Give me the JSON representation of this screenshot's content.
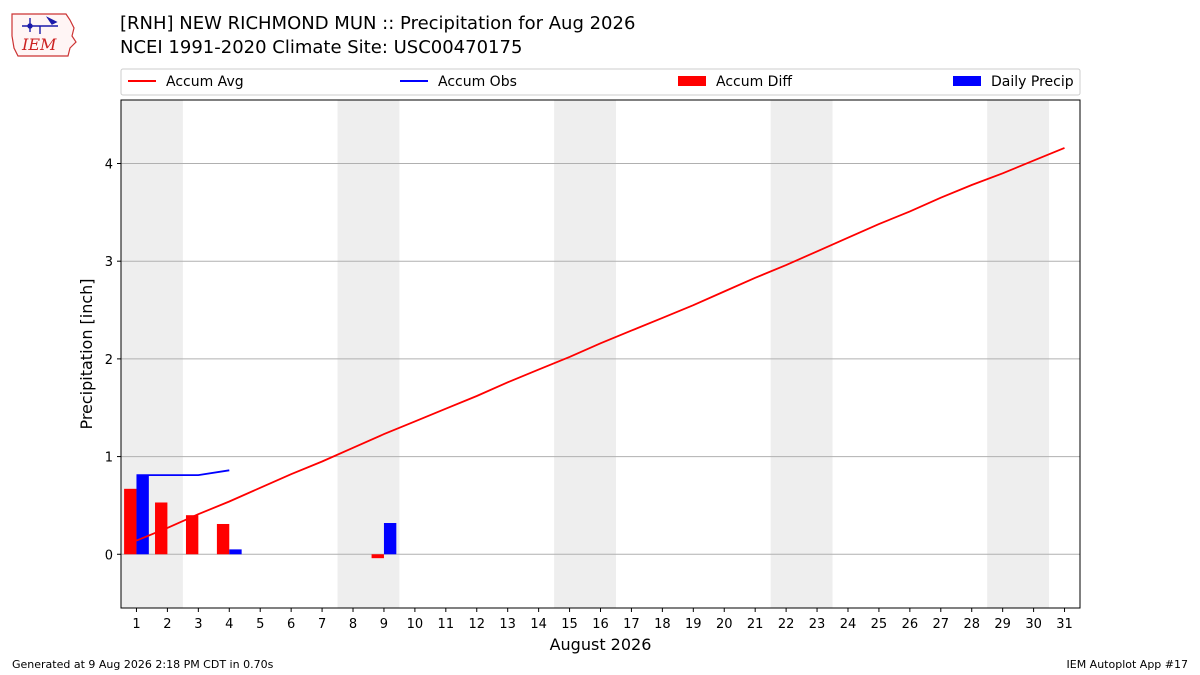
{
  "logo": {
    "text": "IEM"
  },
  "title_lines": [
    "[RNH] NEW RICHMOND MUN :: Precipitation for Aug 2026",
    "NCEI 1991-2020 Climate Site: USC00470175"
  ],
  "footer": {
    "left": "Generated at 9 Aug 2026 2:18 PM CDT in 0.70s",
    "right": "IEM Autoplot App #17"
  },
  "colors": {
    "accum_avg": "#ff0000",
    "accum_obs": "#0000ff",
    "accum_diff": "#ff0000",
    "daily_precip": "#0000ff",
    "weekend_shade": "#eeeeee",
    "grid": "#b0b0b0"
  },
  "chart_data": {
    "type": "line",
    "title": "",
    "xlabel": "August 2026",
    "ylabel": "Precipitation [inch]",
    "xlim": [
      0.5,
      31.5
    ],
    "ylim": [
      -0.55,
      4.65
    ],
    "x_ticks": [
      1,
      2,
      3,
      4,
      5,
      6,
      7,
      8,
      9,
      10,
      11,
      12,
      13,
      14,
      15,
      16,
      17,
      18,
      19,
      20,
      21,
      22,
      23,
      24,
      25,
      26,
      27,
      28,
      29,
      30,
      31
    ],
    "y_ticks": [
      0,
      1,
      2,
      3,
      4
    ],
    "grid": "horizontal",
    "legend_placement": "top",
    "legend": [
      "Accum Avg",
      "Accum Obs",
      "Accum Diff",
      "Daily Precip"
    ],
    "weekend_shading": [
      [
        0.5,
        2.5
      ],
      [
        7.5,
        9.5
      ],
      [
        14.5,
        16.5
      ],
      [
        21.5,
        23.5
      ],
      [
        28.5,
        30.5
      ]
    ],
    "series": [
      {
        "name": "Accum Avg",
        "kind": "line",
        "x": [
          1,
          2,
          3,
          4,
          5,
          6,
          7,
          8,
          9,
          10,
          11,
          12,
          13,
          14,
          15,
          16,
          17,
          18,
          19,
          20,
          21,
          22,
          23,
          24,
          25,
          26,
          27,
          28,
          29,
          30,
          31
        ],
        "values": [
          0.14,
          0.27,
          0.41,
          0.54,
          0.68,
          0.82,
          0.95,
          1.09,
          1.23,
          1.36,
          1.49,
          1.62,
          1.76,
          1.89,
          2.02,
          2.16,
          2.29,
          2.42,
          2.55,
          2.69,
          2.83,
          2.96,
          3.1,
          3.24,
          3.38,
          3.51,
          3.65,
          3.78,
          3.9,
          4.03,
          4.16
        ]
      },
      {
        "name": "Accum Obs",
        "kind": "line",
        "x": [
          1,
          2,
          3,
          4
        ],
        "values": [
          0.81,
          0.81,
          0.81,
          0.86
        ]
      },
      {
        "name": "Accum Diff",
        "kind": "bar",
        "x": [
          1,
          2,
          3,
          4,
          9
        ],
        "values": [
          0.67,
          0.53,
          0.4,
          0.31,
          -0.04
        ]
      },
      {
        "name": "Daily Precip",
        "kind": "bar",
        "x": [
          1,
          4,
          9
        ],
        "values": [
          0.81,
          0.05,
          0.32
        ]
      }
    ]
  }
}
